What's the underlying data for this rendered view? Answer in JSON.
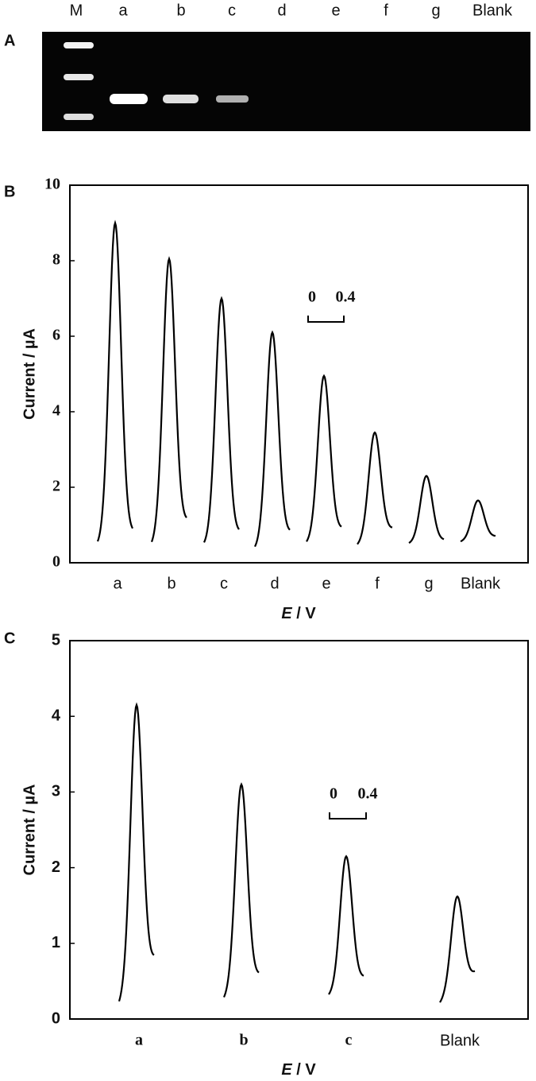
{
  "gel": {
    "panel_label": "A",
    "lanes": [
      "M",
      "a",
      "b",
      "c",
      "d",
      "e",
      "f",
      "g",
      "Blank"
    ]
  },
  "chart_data": [
    {
      "type": "line",
      "panel_label": "B",
      "y_label": "Current / µA",
      "x_label_italic": "E",
      "x_label_rest": " / V",
      "categories": [
        "a",
        "b",
        "c",
        "d",
        "e",
        "f",
        "g",
        "Blank"
      ],
      "values": [
        9.0,
        8.05,
        7.0,
        6.1,
        4.95,
        3.45,
        2.3,
        1.65
      ],
      "start": [
        0.45,
        0.45,
        0.45,
        0.35,
        0.5,
        0.45,
        0.5,
        0.55
      ],
      "end": [
        0.8,
        1.1,
        0.8,
        0.8,
        0.9,
        0.9,
        0.6,
        0.7
      ],
      "color": "#000000",
      "ylim": [
        0,
        10
      ],
      "yticks": [
        0,
        2,
        4,
        6,
        8,
        10
      ],
      "scale_bar": [
        0,
        0.4
      ]
    },
    {
      "type": "line",
      "panel_label": "C",
      "y_label": "Current / µA",
      "x_label_italic": "E",
      "x_label_rest": " / V",
      "categories": [
        "a",
        "b",
        "c",
        "Blank"
      ],
      "values": [
        4.15,
        3.1,
        2.15,
        1.62
      ],
      "start": [
        0.18,
        0.25,
        0.3,
        0.2
      ],
      "end": [
        0.8,
        0.58,
        0.55,
        0.62
      ],
      "color": "#000000",
      "ylim": [
        0,
        5
      ],
      "yticks": [
        0,
        1,
        2,
        3,
        4,
        5
      ],
      "scale_bar": [
        0,
        0.4
      ]
    }
  ]
}
